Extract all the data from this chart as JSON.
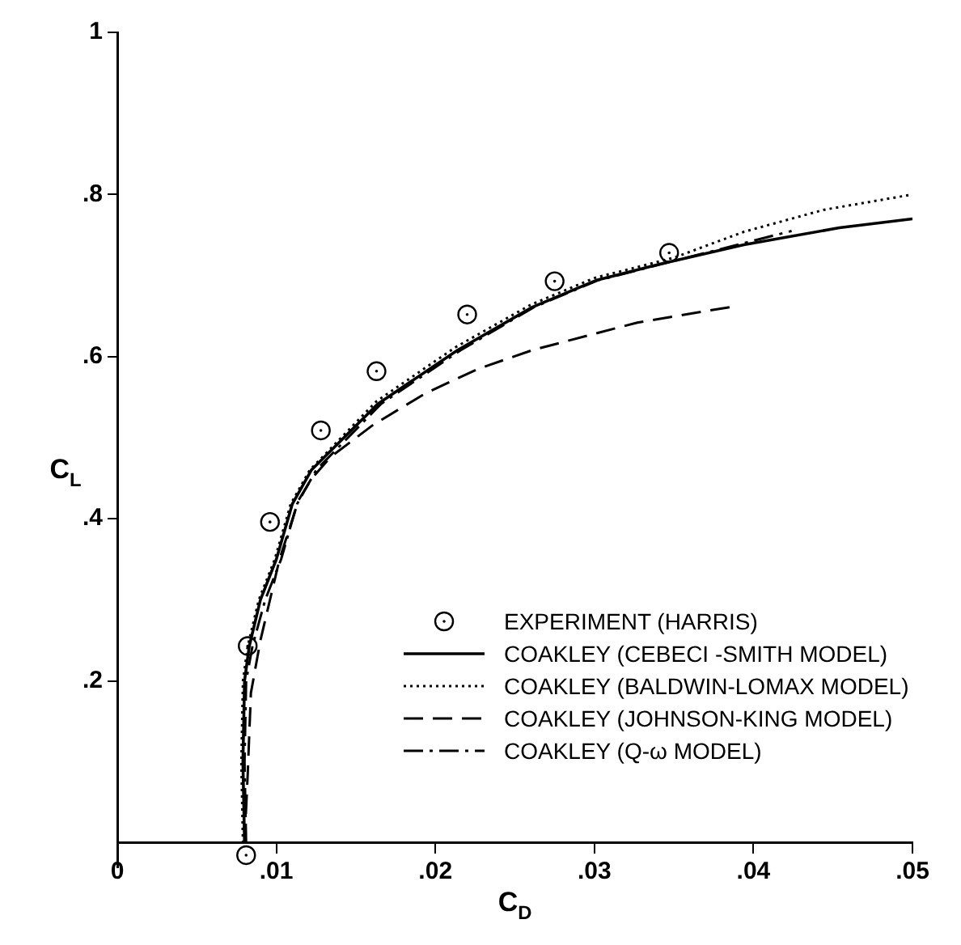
{
  "chart_data": {
    "type": "line",
    "xlabel": "C$_{D}$",
    "ylabel": "C$_{L}$",
    "xlim": [
      0,
      0.05
    ],
    "ylim": [
      -0.03,
      1
    ],
    "xticks": [
      0,
      {
        "value": 0.01,
        "label": ".01"
      },
      {
        "value": 0.02,
        "label": ".02"
      },
      {
        "value": 0.03,
        "label": ".03"
      },
      {
        "value": 0.04,
        "label": ".04"
      },
      {
        "value": 0.05,
        "label": ".05"
      }
    ],
    "yticks": [
      {
        "value": 0.2,
        "label": ".2"
      },
      {
        "value": 0.4,
        "label": ".4"
      },
      {
        "value": 0.6,
        "label": ".6"
      },
      {
        "value": 0.8,
        "label": ".8"
      },
      1
    ],
    "grid": false,
    "legend": "bottom right",
    "series": [
      {
        "name": "EXPERIMENT (HARRIS)",
        "type": "scatter",
        "marker": "circle",
        "color": "#000000",
        "x": [
          0.0081,
          0.0082,
          0.0096,
          0.0128,
          0.0163,
          0.022,
          0.0275,
          0.0347
        ],
        "values": [
          -0.015,
          0.243,
          0.396,
          0.509,
          0.582,
          0.652,
          0.693,
          0.728
        ]
      },
      {
        "name": "COAKLEY (CEBECI -SMITH MODEL)",
        "type": "line",
        "line_style": "solid",
        "color": "#000000",
        "x": [
          0.008,
          0.0079,
          0.008,
          0.0083,
          0.009,
          0.01,
          0.011,
          0.0122,
          0.0164,
          0.0214,
          0.0261,
          0.0301,
          0.0341,
          0.0394,
          0.0454,
          0.05
        ],
        "values": [
          0,
          0.1,
          0.2,
          0.243,
          0.3,
          0.35,
          0.418,
          0.46,
          0.542,
          0.608,
          0.661,
          0.694,
          0.714,
          0.738,
          0.759,
          0.77
        ]
      },
      {
        "name": "COAKLEY (BALDWIN-LOMAX MODEL)",
        "type": "line",
        "line_style": "dotted",
        "color": "#000000",
        "x": [
          0.0079,
          0.0078,
          0.0079,
          0.0082,
          0.0089,
          0.0099,
          0.0109,
          0.0121,
          0.0163,
          0.0213,
          0.026,
          0.03,
          0.035,
          0.0394,
          0.0444,
          0.05
        ],
        "values": [
          0,
          0.1,
          0.2,
          0.243,
          0.3,
          0.35,
          0.418,
          0.46,
          0.545,
          0.612,
          0.664,
          0.697,
          0.722,
          0.754,
          0.781,
          0.8
        ]
      },
      {
        "name": "COAKLEY (JOHNSON-KING MODEL)",
        "type": "line",
        "line_style": "dashed",
        "color": "#000000",
        "x": [
          0.008,
          0.0082,
          0.0084,
          0.009,
          0.0102,
          0.0114,
          0.0122,
          0.0134,
          0.0161,
          0.0194,
          0.0227,
          0.0261,
          0.0327,
          0.0388
        ],
        "values": [
          0,
          0.085,
          0.185,
          0.25,
          0.35,
          0.423,
          0.449,
          0.476,
          0.516,
          0.555,
          0.585,
          0.608,
          0.642,
          0.662
        ]
      },
      {
        "name": "COAKLEY (Q-ω MODEL)",
        "type": "line",
        "line_style": "dashdot",
        "color": "#000000",
        "x": [
          0.0081,
          0.008,
          0.0081,
          0.0085,
          0.0093,
          0.0103,
          0.0113,
          0.0125,
          0.0166,
          0.0216,
          0.0262,
          0.0302,
          0.035,
          0.0424
        ],
        "values": [
          0,
          0.1,
          0.2,
          0.243,
          0.3,
          0.35,
          0.418,
          0.46,
          0.542,
          0.608,
          0.661,
          0.694,
          0.718,
          0.755
        ]
      }
    ]
  }
}
